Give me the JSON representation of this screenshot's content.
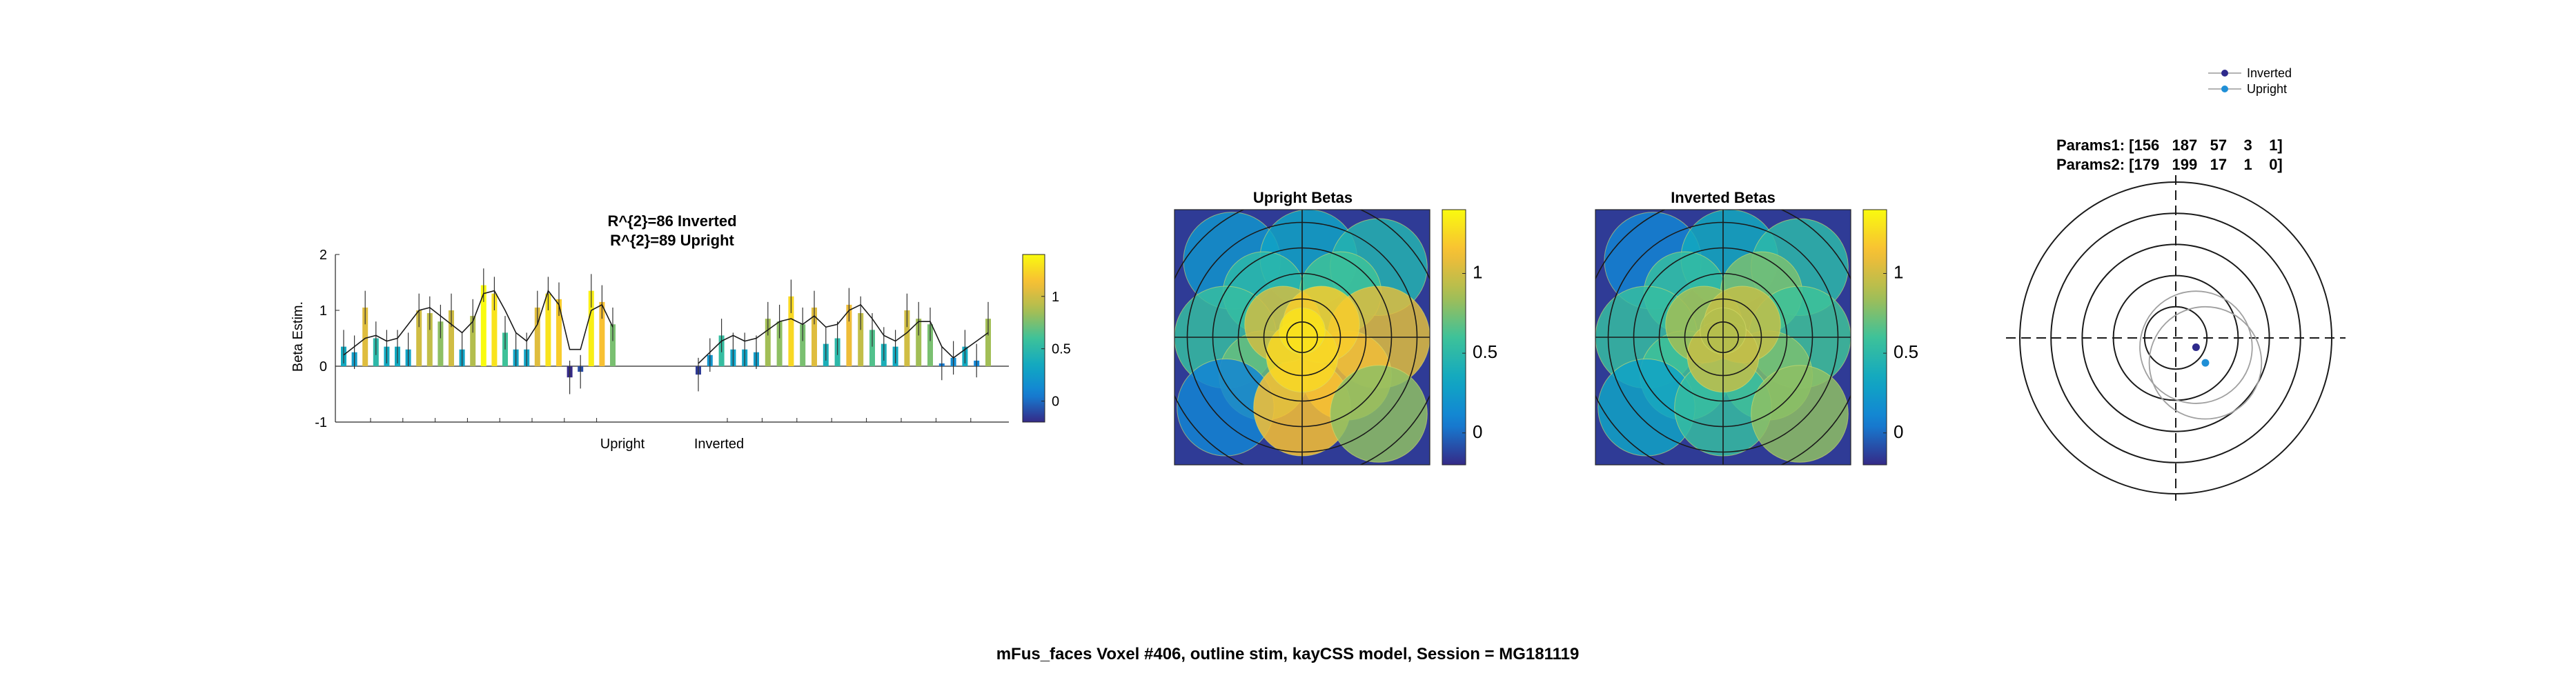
{
  "figure": {
    "suptitle": "mFus_faces Voxel #406, outline stim, kayCSS model, Session = MG181119"
  },
  "chart_data": [
    {
      "id": "betas",
      "type": "bar",
      "title_lines": [
        "R^{2}=86 Inverted",
        "R^{2}=89 Upright"
      ],
      "ylabel": "Beta Estim.",
      "ylim": [
        -1,
        2
      ],
      "yticks": [
        "-1",
        "0",
        "1",
        "2"
      ],
      "group_labels": [
        "Upright",
        "Inverted"
      ],
      "colorbar": {
        "ticks": [
          "0",
          "0.5",
          "1"
        ],
        "range": [
          -0.2,
          1.4
        ]
      },
      "upright_values": [
        0.35,
        0.25,
        1.05,
        0.5,
        0.35,
        0.35,
        0.3,
        1.0,
        0.95,
        0.8,
        1.0,
        0.3,
        0.9,
        1.45,
        1.3,
        0.6,
        0.3,
        0.3,
        1.05,
        1.3,
        1.2,
        -0.2,
        -0.1,
        1.35,
        1.15,
        0.75
      ],
      "upright_errors": [
        0.3,
        0.3,
        0.3,
        0.3,
        0.3,
        0.3,
        0.3,
        0.3,
        0.3,
        0.3,
        0.3,
        0.3,
        0.3,
        0.3,
        0.3,
        0.3,
        0.3,
        0.3,
        0.3,
        0.3,
        0.3,
        0.3,
        0.3,
        0.3,
        0.3,
        0.3
      ],
      "upright_fit": [
        0.2,
        0.35,
        0.5,
        0.55,
        0.45,
        0.5,
        0.75,
        1.0,
        1.05,
        0.9,
        0.75,
        0.6,
        0.8,
        1.3,
        1.35,
        1.0,
        0.6,
        0.45,
        0.75,
        1.35,
        1.1,
        0.3,
        0.3,
        1.0,
        1.1,
        0.7
      ],
      "inverted_values": [
        -0.15,
        0.2,
        0.55,
        0.3,
        0.3,
        0.25,
        0.85,
        0.8,
        1.25,
        0.75,
        1.05,
        0.4,
        0.5,
        1.1,
        0.95,
        0.65,
        0.4,
        0.35,
        1.0,
        0.85,
        0.75,
        0.05,
        0.15,
        0.35,
        0.1,
        0.85
      ],
      "inverted_errors": [
        0.3,
        0.3,
        0.3,
        0.3,
        0.3,
        0.3,
        0.3,
        0.3,
        0.3,
        0.3,
        0.3,
        0.3,
        0.3,
        0.3,
        0.3,
        0.3,
        0.3,
        0.3,
        0.3,
        0.3,
        0.3,
        0.3,
        0.3,
        0.3,
        0.3,
        0.3
      ],
      "inverted_fit": [
        0.05,
        0.25,
        0.45,
        0.55,
        0.45,
        0.5,
        0.65,
        0.8,
        0.85,
        0.75,
        0.9,
        0.7,
        0.75,
        1.0,
        1.1,
        0.85,
        0.55,
        0.45,
        0.6,
        0.8,
        0.8,
        0.35,
        0.15,
        0.3,
        0.45,
        0.6
      ]
    },
    {
      "id": "upright_betas",
      "type": "heatmap",
      "title": "Upright Betas",
      "colorbar": {
        "ticks": [
          "0",
          "0.5",
          "1"
        ],
        "range": [
          -0.2,
          1.4
        ]
      },
      "background_value": -0.15,
      "circles": [
        {
          "x": -0.55,
          "y": 0.6,
          "r": 0.38,
          "v": 0.2
        },
        {
          "x": 0.05,
          "y": 0.62,
          "r": 0.38,
          "v": 0.3
        },
        {
          "x": 0.6,
          "y": 0.55,
          "r": 0.38,
          "v": 0.45
        },
        {
          "x": -0.3,
          "y": 0.35,
          "r": 0.32,
          "v": 0.5
        },
        {
          "x": 0.3,
          "y": 0.35,
          "r": 0.32,
          "v": 0.6
        },
        {
          "x": -0.6,
          "y": 0.0,
          "r": 0.4,
          "v": 0.55
        },
        {
          "x": 0.6,
          "y": 0.0,
          "r": 0.4,
          "v": 1.05
        },
        {
          "x": -0.3,
          "y": -0.3,
          "r": 0.35,
          "v": 0.7
        },
        {
          "x": 0.35,
          "y": -0.3,
          "r": 0.35,
          "v": 1.1
        },
        {
          "x": -0.6,
          "y": -0.55,
          "r": 0.38,
          "v": 0.1
        },
        {
          "x": 0.0,
          "y": -0.55,
          "r": 0.38,
          "v": 1.15
        },
        {
          "x": 0.6,
          "y": -0.6,
          "r": 0.38,
          "v": 0.8
        },
        {
          "x": -0.15,
          "y": 0.1,
          "r": 0.3,
          "v": 1.0
        },
        {
          "x": 0.15,
          "y": 0.1,
          "r": 0.3,
          "v": 1.2
        },
        {
          "x": 0.0,
          "y": -0.15,
          "r": 0.28,
          "v": 1.25
        },
        {
          "x": 0.0,
          "y": 0.05,
          "r": 0.18,
          "v": 1.3
        }
      ]
    },
    {
      "id": "inverted_betas",
      "type": "heatmap",
      "title": "Inverted Betas",
      "colorbar": {
        "ticks": [
          "0",
          "0.5",
          "1"
        ],
        "range": [
          -0.2,
          1.4
        ]
      },
      "background_value": -0.15,
      "circles": [
        {
          "x": -0.55,
          "y": 0.6,
          "r": 0.38,
          "v": 0.1
        },
        {
          "x": 0.05,
          "y": 0.62,
          "r": 0.38,
          "v": 0.35
        },
        {
          "x": 0.6,
          "y": 0.55,
          "r": 0.38,
          "v": 0.5
        },
        {
          "x": -0.3,
          "y": 0.35,
          "r": 0.32,
          "v": 0.55
        },
        {
          "x": 0.3,
          "y": 0.35,
          "r": 0.32,
          "v": 0.75
        },
        {
          "x": -0.6,
          "y": 0.0,
          "r": 0.4,
          "v": 0.55
        },
        {
          "x": 0.6,
          "y": 0.0,
          "r": 0.4,
          "v": 0.6
        },
        {
          "x": -0.3,
          "y": -0.3,
          "r": 0.35,
          "v": 0.6
        },
        {
          "x": 0.35,
          "y": -0.3,
          "r": 0.35,
          "v": 0.75
        },
        {
          "x": -0.6,
          "y": -0.55,
          "r": 0.38,
          "v": 0.3
        },
        {
          "x": 0.0,
          "y": -0.55,
          "r": 0.38,
          "v": 0.55
        },
        {
          "x": 0.6,
          "y": -0.6,
          "r": 0.38,
          "v": 0.8
        },
        {
          "x": -0.15,
          "y": 0.1,
          "r": 0.3,
          "v": 0.85
        },
        {
          "x": 0.15,
          "y": 0.1,
          "r": 0.3,
          "v": 0.95
        },
        {
          "x": 0.0,
          "y": -0.15,
          "r": 0.28,
          "v": 0.95
        },
        {
          "x": 0.0,
          "y": 0.05,
          "r": 0.18,
          "v": 0.9
        }
      ]
    },
    {
      "id": "prf",
      "type": "scatter",
      "params_lines": [
        "Params1: [156   187   57    3    1]",
        "Params2: [179   199   17    1    0]"
      ],
      "legend": [
        {
          "name": "Inverted",
          "color": "#2e2a8c"
        },
        {
          "name": "Upright",
          "color": "#1f8fd6"
        }
      ],
      "legend_location": "top-right",
      "points": [
        {
          "series": "Inverted",
          "x": 0.13,
          "y": -0.06
        },
        {
          "series": "Upright",
          "x": 0.19,
          "y": -0.16
        }
      ]
    }
  ]
}
